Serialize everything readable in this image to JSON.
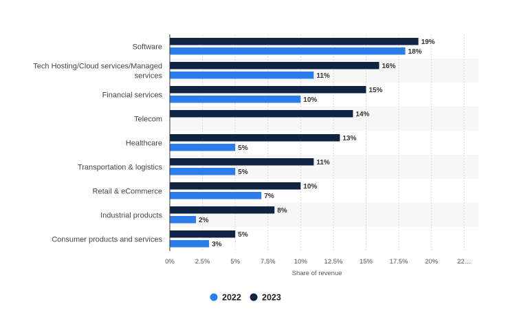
{
  "chart_data": {
    "type": "bar",
    "orientation": "horizontal",
    "title": "",
    "xlabel": "Share of revenue",
    "ylabel": "",
    "categories": [
      "Software",
      "Tech Hosting/Cloud services/Managed services",
      "Financial services",
      "Telecom",
      "Healthcare",
      "Transportation & logistics",
      "Retail & eCommerce",
      "Industrial products",
      "Consumer products and services"
    ],
    "series": [
      {
        "name": "2022",
        "color": "#2b7de9",
        "values": [
          18,
          11,
          10,
          null,
          5,
          5,
          7,
          2,
          3
        ],
        "labels": [
          "18%",
          "11%",
          "10%",
          "",
          "5%",
          "5%",
          "7%",
          "2%",
          "3%"
        ]
      },
      {
        "name": "2023",
        "color": "#0f2443",
        "values": [
          19,
          16,
          15,
          14,
          13,
          11,
          10,
          8,
          5
        ],
        "labels": [
          "19%",
          "16%",
          "15%",
          "14%",
          "13%",
          "11%",
          "10%",
          "8%",
          "5%"
        ]
      }
    ],
    "xlim": [
      0,
      22.5
    ],
    "xticks": [
      0,
      2.5,
      5,
      7.5,
      10,
      12.5,
      15,
      17.5,
      20,
      22.5
    ],
    "xtick_labels": [
      "0%",
      "2.5%",
      "5%",
      "7.5%",
      "10%",
      "12.5%",
      "15%",
      "17.5%",
      "20%",
      "22…"
    ],
    "grid": true,
    "legend": "bottom-center"
  }
}
